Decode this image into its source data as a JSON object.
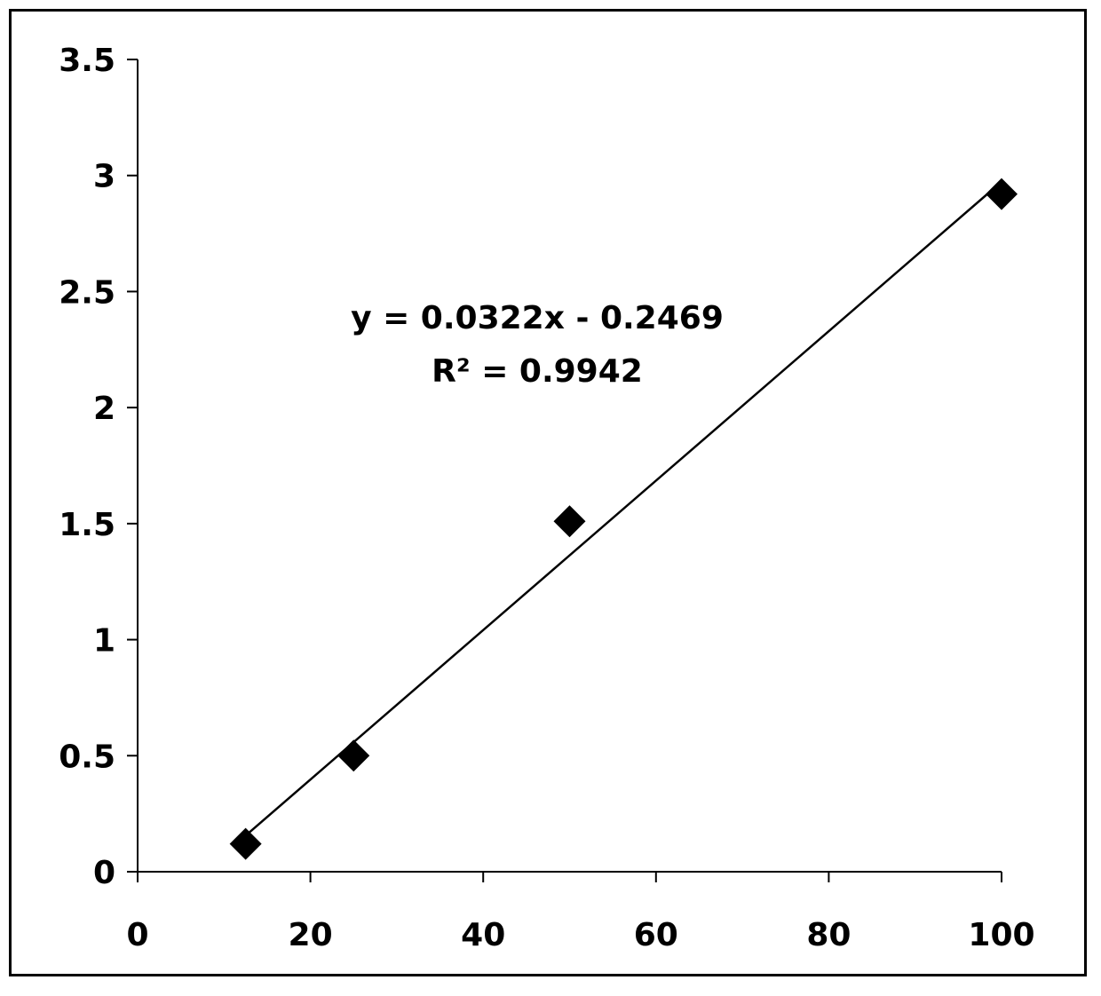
{
  "chart_data": {
    "type": "scatter",
    "title": "",
    "xlabel": "",
    "ylabel": "",
    "xlim": [
      0,
      100
    ],
    "ylim": [
      0,
      3.5
    ],
    "xticks": [
      0,
      20,
      40,
      60,
      80,
      100
    ],
    "yticks": [
      0,
      0.5,
      1,
      1.5,
      2,
      2.5,
      3,
      3.5
    ],
    "xtick_labels": [
      "0",
      "20",
      "40",
      "60",
      "80",
      "100"
    ],
    "ytick_labels": [
      "0",
      "0.5",
      "1",
      "1.5",
      "2",
      "2.5",
      "3",
      "3.5"
    ],
    "grid": false,
    "legend": false,
    "marker": "diamond",
    "marker_color": "#000000",
    "series": [
      {
        "x": [
          12.5,
          25,
          50,
          100
        ],
        "y": [
          0.12,
          0.5,
          1.51,
          2.92
        ]
      }
    ],
    "trendline": {
      "type": "linear",
      "slope": 0.0322,
      "intercept": -0.2469,
      "x_range": [
        12.5,
        100
      ],
      "color": "#000000"
    },
    "annotations": {
      "equation": "y = 0.0322x - 0.2469",
      "r_squared": "R² = 0.9942"
    }
  }
}
